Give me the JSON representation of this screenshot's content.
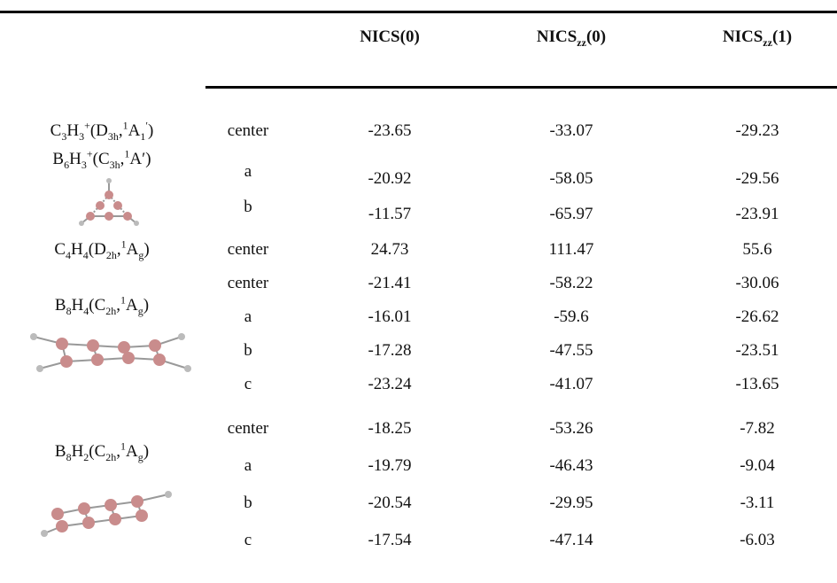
{
  "header": {
    "columns": [
      [
        {
          "t": "NICS(0)"
        }
      ],
      [
        {
          "t": "NICS"
        },
        {
          "sub": "zz"
        },
        {
          "t": "(0)"
        }
      ],
      [
        {
          "t": "NICS"
        },
        {
          "sub": "zz"
        },
        {
          "t": "(1)"
        }
      ]
    ]
  },
  "groups": [
    {
      "formula": [
        {
          "t": "C"
        },
        {
          "sub": "3"
        },
        {
          "t": "H"
        },
        {
          "sub": "3"
        },
        {
          "sup": "+"
        },
        {
          "t": "(D"
        },
        {
          "sub": "3h"
        },
        {
          "t": ","
        },
        {
          "sup": "1"
        },
        {
          "t": "A"
        },
        {
          "sub": "1"
        },
        {
          "sup": "′"
        },
        {
          "t": ")"
        }
      ],
      "rows": [
        {
          "site": "center",
          "values": [
            "-23.65",
            "-33.07",
            "-29.23"
          ]
        }
      ]
    },
    {
      "formula": [
        {
          "t": "B"
        },
        {
          "sub": "6"
        },
        {
          "t": "H"
        },
        {
          "sub": "3"
        },
        {
          "sup": "+"
        },
        {
          "t": "(C"
        },
        {
          "sub": "3h"
        },
        {
          "t": ","
        },
        {
          "sup": "1"
        },
        {
          "t": "A′)"
        }
      ],
      "rows": [
        {
          "site": "a",
          "values": [
            "-20.92",
            "-58.05",
            "-29.56"
          ]
        },
        {
          "site": "b",
          "values": [
            "-11.57",
            "-65.97",
            "-23.91"
          ]
        }
      ]
    },
    {
      "formula": [
        {
          "t": "C"
        },
        {
          "sub": "4"
        },
        {
          "t": "H"
        },
        {
          "sub": "4"
        },
        {
          "t": "(D"
        },
        {
          "sub": "2h"
        },
        {
          "t": ","
        },
        {
          "sup": "1"
        },
        {
          "t": "A"
        },
        {
          "sub": "g"
        },
        {
          "t": ")"
        }
      ],
      "rows": [
        {
          "site": "center",
          "values": [
            "24.73",
            "111.47",
            "55.6"
          ]
        }
      ]
    },
    {
      "formula": [
        {
          "t": "B"
        },
        {
          "sub": "8"
        },
        {
          "t": "H"
        },
        {
          "sub": "4"
        },
        {
          "t": "(C"
        },
        {
          "sub": "2h"
        },
        {
          "t": ","
        },
        {
          "sup": "1"
        },
        {
          "t": "A"
        },
        {
          "sub": "g"
        },
        {
          "t": ")"
        }
      ],
      "rows": [
        {
          "site": "center",
          "values": [
            "-21.41",
            "-58.22",
            "-30.06"
          ]
        },
        {
          "site": "a",
          "values": [
            "-16.01",
            "-59.6",
            "-26.62"
          ]
        },
        {
          "site": "b",
          "values": [
            "-17.28",
            "-47.55",
            "-23.51"
          ]
        },
        {
          "site": "c",
          "values": [
            "-23.24",
            "-41.07",
            "-13.65"
          ]
        }
      ]
    },
    {
      "formula": [
        {
          "t": "B"
        },
        {
          "sub": "8"
        },
        {
          "t": "H"
        },
        {
          "sub": "2"
        },
        {
          "t": "(C"
        },
        {
          "sub": "2h"
        },
        {
          "t": ","
        },
        {
          "sup": "1"
        },
        {
          "t": "A"
        },
        {
          "sub": "g"
        },
        {
          "t": ")"
        }
      ],
      "rows": [
        {
          "site": "center",
          "values": [
            "-18.25",
            "-53.26",
            "-7.82"
          ]
        },
        {
          "site": "a",
          "values": [
            "-19.79",
            "-46.43",
            "-9.04"
          ]
        },
        {
          "site": "b",
          "values": [
            "-20.54",
            "-29.95",
            "-3.11"
          ]
        },
        {
          "site": "c",
          "values": [
            "-17.54",
            "-47.14",
            "-6.03"
          ]
        }
      ]
    }
  ]
}
